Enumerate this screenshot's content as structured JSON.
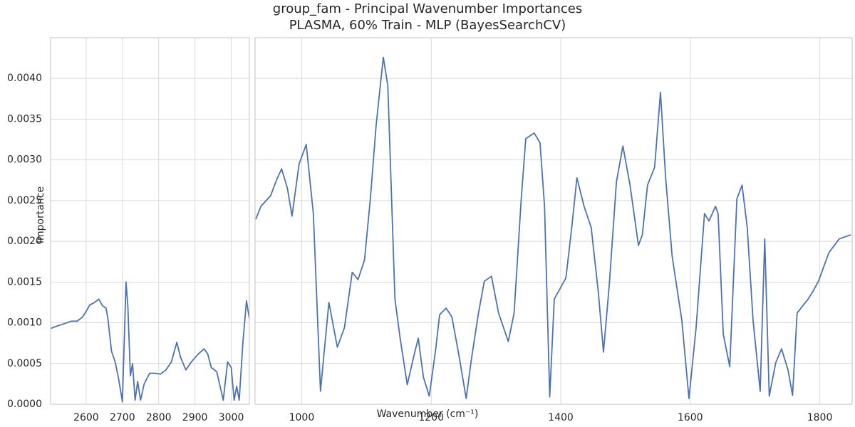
{
  "chart_data": [
    {
      "type": "line",
      "title": "group_fam - Principal Wavenumber Importances",
      "subtitle": "PLASMA, 60% Train - MLP (BayesSearchCV)",
      "ylabel": "Importance",
      "xlim": [
        2502,
        3050
      ],
      "xticks": [
        2600,
        2700,
        2800,
        2900,
        3000
      ],
      "ylim": [
        0,
        0.0045
      ],
      "yticks": [
        {
          "value": 0,
          "label": "0.0000"
        },
        {
          "value": 0.0005,
          "label": "0.0005"
        },
        {
          "value": 0.001,
          "label": "0.0010"
        },
        {
          "value": 0.0015,
          "label": "0.0015"
        },
        {
          "value": 0.002,
          "label": "0.0020"
        },
        {
          "value": 0.0025,
          "label": "0.0025"
        },
        {
          "value": 0.003,
          "label": "0.0030"
        },
        {
          "value": 0.0035,
          "label": "0.0035"
        },
        {
          "value": 0.004,
          "label": "0.0040"
        }
      ],
      "grid": true,
      "x": [
        2502,
        2520,
        2540,
        2560,
        2575,
        2590,
        2600,
        2610,
        2620,
        2635,
        2645,
        2655,
        2660,
        2670,
        2680,
        2690,
        2700,
        2710,
        2715,
        2722,
        2728,
        2735,
        2742,
        2750,
        2760,
        2775,
        2790,
        2805,
        2820,
        2835,
        2850,
        2860,
        2875,
        2890,
        2910,
        2925,
        2935,
        2945,
        2960,
        2978,
        2990,
        3000,
        3008,
        3015,
        3022,
        3032,
        3042,
        3050
      ],
      "series": [
        {
          "color": "#4c72b0",
          "values": [
            0.00093,
            0.00096,
            0.00099,
            0.00102,
            0.00102,
            0.00107,
            0.00114,
            0.00122,
            0.00124,
            0.00129,
            0.00121,
            0.00118,
            0.00105,
            0.00065,
            0.00052,
            0.0003,
            3e-05,
            0.0015,
            0.0012,
            0.00035,
            0.0005,
            5e-05,
            0.00028,
            5e-05,
            0.00025,
            0.00038,
            0.00038,
            0.00037,
            0.00042,
            0.00052,
            0.00076,
            0.00058,
            0.00042,
            0.00052,
            0.00062,
            0.00068,
            0.00062,
            0.00045,
            0.0004,
            5e-05,
            0.00052,
            0.00045,
            5e-05,
            0.00022,
            5e-05,
            0.00075,
            0.00127,
            0.00105
          ]
        }
      ]
    },
    {
      "type": "line",
      "xlabel": "Wavenumber (cm⁻¹)",
      "xlim": [
        928,
        1850
      ],
      "xticks": [
        1000,
        1200,
        1400,
        1600,
        1800
      ],
      "ylim": [
        0,
        0.0045
      ],
      "grid": true,
      "x": [
        929,
        937,
        952,
        961,
        969,
        978,
        985,
        996,
        1007,
        1018,
        1029,
        1042,
        1055,
        1066,
        1078,
        1087,
        1097,
        1106,
        1115,
        1126,
        1133,
        1144,
        1152,
        1163,
        1174,
        1180,
        1188,
        1197,
        1207,
        1213,
        1223,
        1232,
        1243,
        1254,
        1262,
        1273,
        1282,
        1293,
        1304,
        1319,
        1328,
        1339,
        1346,
        1359,
        1368,
        1375,
        1383,
        1390,
        1408,
        1417,
        1425,
        1436,
        1447,
        1458,
        1466,
        1475,
        1486,
        1496,
        1507,
        1520,
        1526,
        1534,
        1545,
        1554,
        1562,
        1572,
        1587,
        1598,
        1609,
        1622,
        1629,
        1639,
        1643,
        1651,
        1661,
        1672,
        1680,
        1688,
        1697,
        1708,
        1715,
        1722,
        1732,
        1741,
        1751,
        1758,
        1765,
        1782,
        1789,
        1798,
        1814,
        1830,
        1848
      ],
      "series": [
        {
          "color": "#4c72b0",
          "values": [
            0.00227,
            0.00243,
            0.00256,
            0.00275,
            0.00289,
            0.00265,
            0.00231,
            0.00295,
            0.00319,
            0.00234,
            0.00016,
            0.00125,
            0.0007,
            0.00094,
            0.00162,
            0.00153,
            0.00177,
            0.00252,
            0.00343,
            0.00426,
            0.00391,
            0.00129,
            0.00081,
            0.00024,
            0.00062,
            0.00081,
            0.00033,
            0.0001,
            0.00068,
            0.0011,
            0.00118,
            0.00107,
            0.00059,
            7e-05,
            0.00055,
            0.00112,
            0.00151,
            0.00157,
            0.00112,
            0.00077,
            0.00112,
            0.00252,
            0.00326,
            0.00333,
            0.00321,
            0.00243,
            9e-05,
            0.00129,
            0.00155,
            0.00217,
            0.00278,
            0.00243,
            0.00217,
            0.00138,
            0.00064,
            0.00147,
            0.00273,
            0.00317,
            0.00269,
            0.00195,
            0.00208,
            0.00269,
            0.00291,
            0.00383,
            0.00278,
            0.00182,
            0.00103,
            7e-05,
            0.00094,
            0.00234,
            0.00225,
            0.00243,
            0.00234,
            0.00086,
            0.00046,
            0.00252,
            0.00269,
            0.00217,
            0.00103,
            0.00016,
            0.00203,
            0.0001,
            0.00051,
            0.00068,
            0.00042,
            0.00011,
            0.00112,
            0.00129,
            0.00138,
            0.00151,
            0.00186,
            0.00203,
            0.00208
          ]
        }
      ]
    }
  ]
}
